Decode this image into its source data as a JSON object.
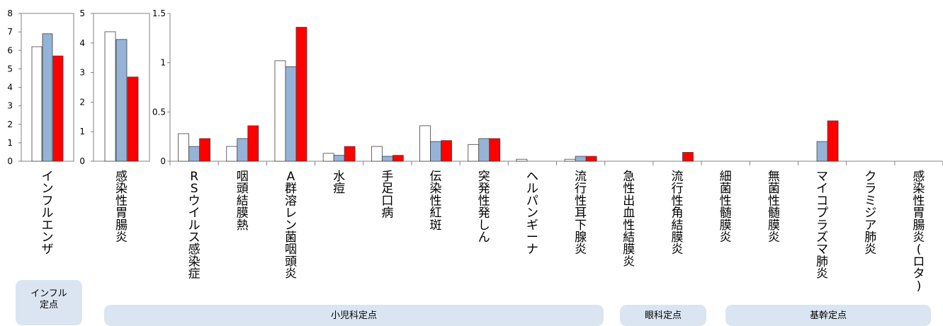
{
  "chart_data": [
    {
      "type": "bar",
      "categories": [
        "インフルエンザ"
      ],
      "ylim": [
        0,
        8
      ],
      "yticks": [
        "0",
        "1",
        "2",
        "3",
        "4",
        "5",
        "6",
        "7",
        "8"
      ],
      "series": [
        {
          "values": [
            6.2
          ],
          "color": "#ffffff"
        },
        {
          "values": [
            6.9
          ],
          "color": "#95b3d7"
        },
        {
          "values": [
            5.7
          ],
          "color": "#ff0000"
        }
      ]
    },
    {
      "type": "bar",
      "categories": [
        "感染性胃腸炎"
      ],
      "ylim": [
        0,
        5
      ],
      "yticks": [
        "0",
        "1",
        "2",
        "3",
        "4",
        "5"
      ],
      "series": [
        {
          "values": [
            4.38
          ],
          "color": "#ffffff"
        },
        {
          "values": [
            4.12
          ],
          "color": "#95b3d7"
        },
        {
          "values": [
            2.85
          ],
          "color": "#ff0000"
        }
      ]
    },
    {
      "type": "bar",
      "categories": [
        "RSウイルス感染症",
        "咽頭結膜熱",
        "A群溶レン菌咽頭炎",
        "水痘",
        "手足口病",
        "伝染性紅斑",
        "突発性発しん",
        "ヘルパンギーナ",
        "流行性耳下腺炎",
        "急性出血性結膜炎",
        "流行性角結膜炎",
        "細菌性髄膜炎",
        "無菌性髄膜炎",
        "マイコプラズマ肺炎",
        "クラミジア肺炎",
        "感染性胃腸炎(ロタ)"
      ],
      "ylim": [
        0,
        1.5
      ],
      "yticks": [
        "0",
        "0.5",
        "1",
        "1.5"
      ],
      "series": [
        {
          "values": [
            0.28,
            0.15,
            1.02,
            0.08,
            0.15,
            0.36,
            0.17,
            0.02,
            0.02,
            0,
            0,
            0,
            0,
            0,
            0,
            0
          ],
          "color": "#ffffff"
        },
        {
          "values": [
            0.15,
            0.23,
            0.96,
            0.06,
            0.05,
            0.2,
            0.23,
            0,
            0.05,
            0,
            0,
            0,
            0,
            0.2,
            0,
            0
          ],
          "color": "#95b3d7"
        },
        {
          "values": [
            0.23,
            0.36,
            1.36,
            0.15,
            0.06,
            0.21,
            0.23,
            0,
            0.05,
            0,
            0.09,
            0,
            0,
            0.41,
            0,
            0
          ],
          "color": "#ff0000"
        }
      ]
    }
  ],
  "groups": {
    "influenza": {
      "line1": "インフル",
      "line2": "定点"
    },
    "pediatric": "小児科定点",
    "ophthalmology": "眼科定点",
    "sentinel": "基幹定点"
  }
}
